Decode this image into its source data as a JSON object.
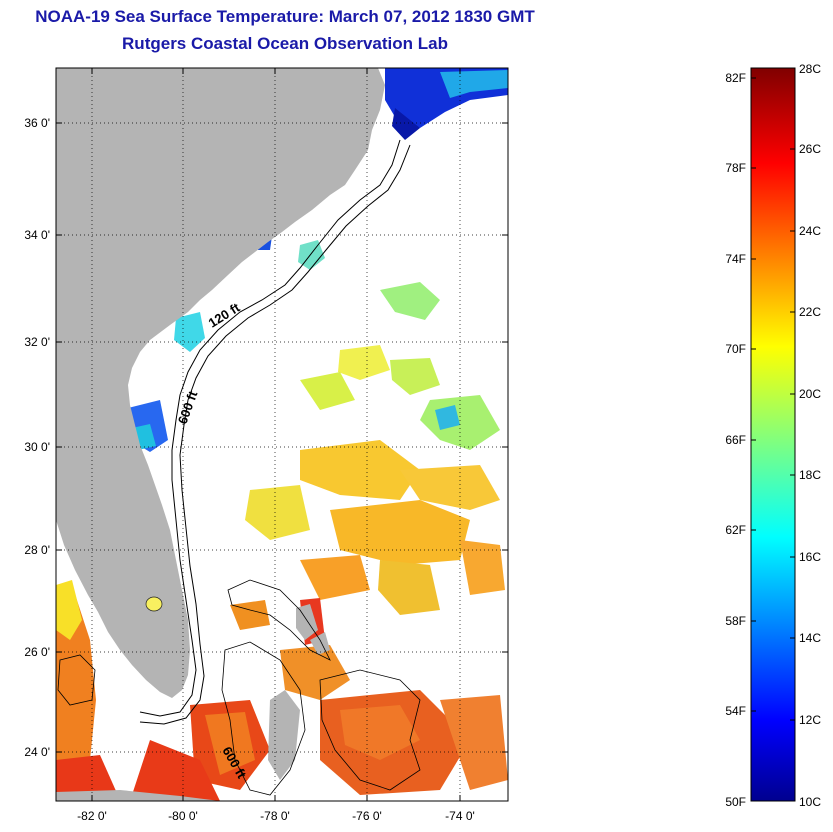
{
  "header": {
    "title": "NOAA-19 Sea Surface Temperature:  March 07, 2012 1830 GMT",
    "subtitle": "Rutgers Coastal Ocean Observation Lab"
  },
  "map": {
    "type": "sea-surface-temperature-map",
    "lat_range": [
      23,
      37.1
    ],
    "lon_range": [
      -82.9,
      -72.9
    ],
    "lat_ticks": [
      "36 0'",
      "34 0'",
      "32 0'",
      "30 0'",
      "28 0'",
      "26 0'",
      "24 0'"
    ],
    "lon_ticks": [
      "-82 0'",
      "-80 0'",
      "-78 0'",
      "-76 0'",
      "-74 0'"
    ],
    "grid": "dotted",
    "land_color": "#b4b4b4",
    "depth_labels": [
      "120 ft",
      "600 ft",
      "600 ft"
    ]
  },
  "colorbar": {
    "fahrenheit_ticks": [
      "82F",
      "78F",
      "74F",
      "70F",
      "66F",
      "62F",
      "58F",
      "54F",
      "50F"
    ],
    "celsius_ticks": [
      "28C",
      "26C",
      "24C",
      "22C",
      "20C",
      "18C",
      "16C",
      "14C",
      "12C",
      "10C"
    ],
    "celsius_range": [
      10,
      28
    ],
    "colormap": "jet"
  }
}
